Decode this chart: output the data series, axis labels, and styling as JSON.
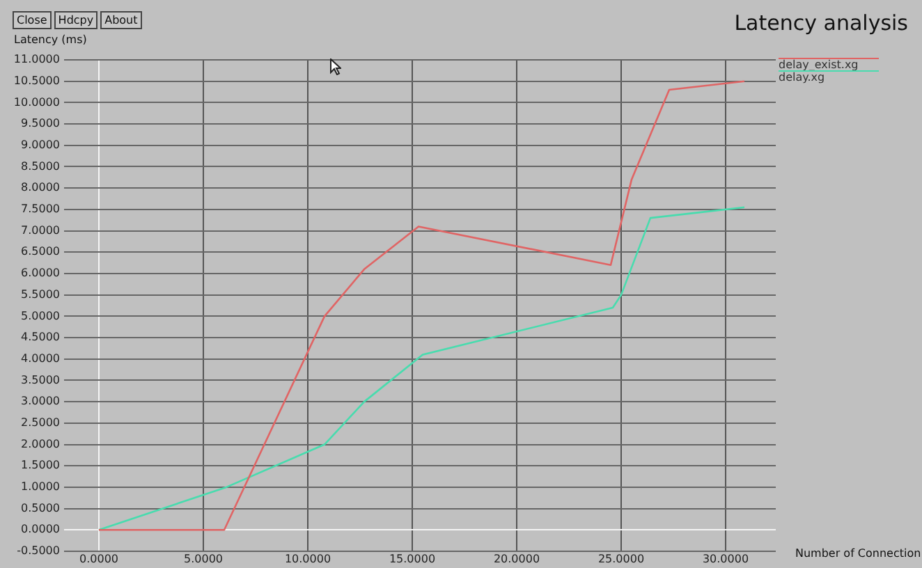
{
  "chart_data": {
    "type": "line",
    "title": "Latency analysis",
    "xlabel": "Number of Connection",
    "ylabel": "Latency (ms)",
    "annotations": [
      "Close",
      "Hdcpy",
      "About"
    ],
    "xlim": [
      -1.4,
      32.4
    ],
    "ylim": [
      -0.5,
      11
    ],
    "xticks": [
      {
        "value": 0,
        "label": "0.0000"
      },
      {
        "value": 5,
        "label": "5.0000"
      },
      {
        "value": 10,
        "label": "10.0000"
      },
      {
        "value": 15,
        "label": "15.0000"
      },
      {
        "value": 20,
        "label": "20.0000"
      },
      {
        "value": 25,
        "label": "25.0000"
      },
      {
        "value": 30,
        "label": "30.0000"
      }
    ],
    "yticks": [
      {
        "value": -0.5,
        "label": "-0.5000"
      },
      {
        "value": 0,
        "label": "0.0000"
      },
      {
        "value": 0.5,
        "label": "0.5000"
      },
      {
        "value": 1,
        "label": "1.0000"
      },
      {
        "value": 1.5,
        "label": "1.5000"
      },
      {
        "value": 2,
        "label": "2.0000"
      },
      {
        "value": 2.5,
        "label": "2.5000"
      },
      {
        "value": 3,
        "label": "3.0000"
      },
      {
        "value": 3.5,
        "label": "3.5000"
      },
      {
        "value": 4,
        "label": "4.0000"
      },
      {
        "value": 4.5,
        "label": "4.5000"
      },
      {
        "value": 5,
        "label": "5.0000"
      },
      {
        "value": 5.5,
        "label": "5.5000"
      },
      {
        "value": 6,
        "label": "6.0000"
      },
      {
        "value": 6.5,
        "label": "6.5000"
      },
      {
        "value": 7,
        "label": "7.0000"
      },
      {
        "value": 7.5,
        "label": "7.5000"
      },
      {
        "value": 8,
        "label": "8.0000"
      },
      {
        "value": 8.5,
        "label": "8.5000"
      },
      {
        "value": 9,
        "label": "9.0000"
      },
      {
        "value": 9.5,
        "label": "9.5000"
      },
      {
        "value": 10,
        "label": "10.0000"
      },
      {
        "value": 10.5,
        "label": "10.5000"
      },
      {
        "value": 11,
        "label": "11.0000"
      }
    ],
    "grid": true,
    "legend": "top right",
    "marker": "none",
    "line_style": "solid",
    "series": [
      {
        "name": "delay_exist.xg",
        "color": "#e06464",
        "x": [
          0,
          6,
          10.8,
          12.7,
          15.3,
          24.5,
          25.5,
          27.3,
          30.9
        ],
        "values": [
          0,
          0,
          5.0,
          6.1,
          7.1,
          6.2,
          8.2,
          10.3,
          10.5
        ]
      },
      {
        "name": "delay.xg",
        "color": "#48dcae",
        "x": [
          0,
          6.1,
          10.8,
          12.7,
          15.5,
          24.6,
          25.0,
          26.4,
          30.9
        ],
        "values": [
          0,
          1.0,
          2.0,
          3.0,
          4.1,
          5.2,
          5.5,
          7.3,
          7.55
        ]
      }
    ]
  }
}
